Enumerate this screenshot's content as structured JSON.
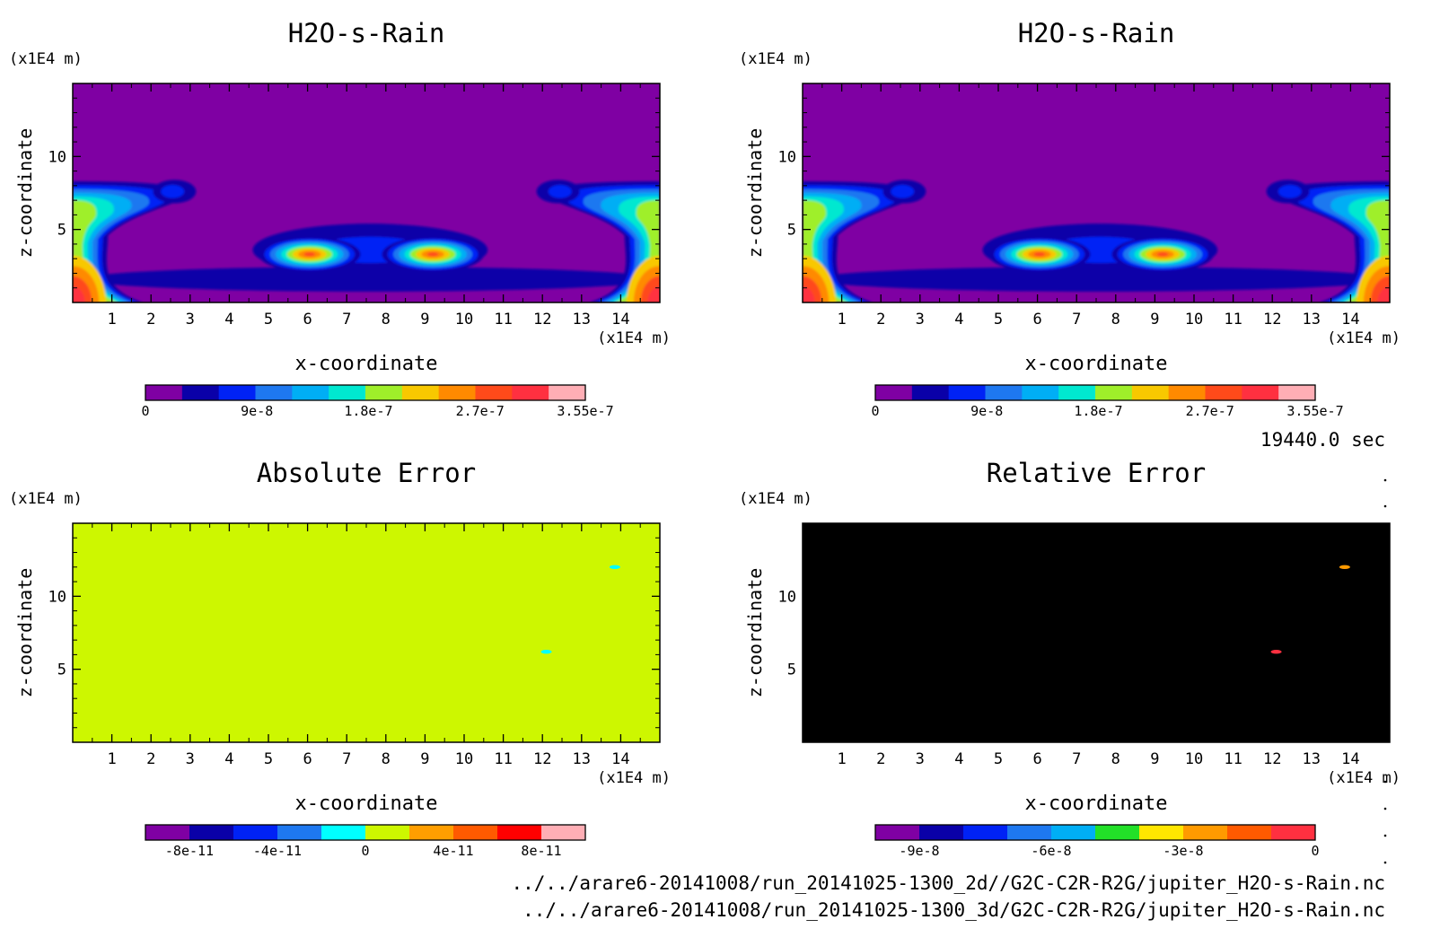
{
  "palettes": {
    "rain": [
      "#7f00a3",
      "#0a00a8",
      "#0022f5",
      "#1e78f0",
      "#00aef5",
      "#00e8d0",
      "#9fef2a",
      "#f8c800",
      "#ff8a00",
      "#ff4a1a",
      "#ff3040",
      "#ffaeb5"
    ],
    "abs_error": [
      "#7f00a3",
      "#0a00a8",
      "#0022f5",
      "#1e78f0",
      "#00ffff",
      "#cdf700",
      "#ff9e00",
      "#ff5a00",
      "#ff0000",
      "#ffaeb5"
    ],
    "rel_error": [
      "#7f00a3",
      "#0a00a8",
      "#0022f5",
      "#1e78f0",
      "#00aef5",
      "#22e028",
      "#ffe600",
      "#ff9a00",
      "#ff5a00",
      "#ff3040"
    ]
  },
  "footer": {
    "time": "19440.0 sec",
    "file1": "../../arare6-20141008/run_20141025-1300_2d//G2C-C2R-R2G/jupiter_H2O-s-Rain.nc",
    "file2": "../../arare6-20141008/run_20141025-1300_3d/G2C-C2R-R2G/jupiter_H2O-s-Rain.nc"
  },
  "chart_data": [
    {
      "type": "heatmap",
      "title": "H2O-s-Rain",
      "xlabel": "x-coordinate",
      "ylabel": "z-coordinate",
      "x_unit": "(x1E4 m)",
      "y_unit": "(x1E4 m)",
      "xlim": [
        0,
        15
      ],
      "ylim": [
        0,
        15
      ],
      "x_ticks": [
        "1",
        "2",
        "3",
        "4",
        "5",
        "6",
        "7",
        "8",
        "9",
        "10",
        "11",
        "12",
        "13",
        "14"
      ],
      "y_ticks": [
        "5",
        "10"
      ],
      "field": "rain",
      "palette": "rain",
      "background_level": 0,
      "colorbar_labels": [
        "0",
        "9e-8",
        "1.8e-7",
        "2.7e-7",
        "3.55e-7"
      ],
      "range": [
        0,
        3.55e-07
      ]
    },
    {
      "type": "heatmap",
      "title": "H2O-s-Rain",
      "xlabel": "x-coordinate",
      "ylabel": "z-coordinate",
      "x_unit": "(x1E4 m)",
      "y_unit": "(x1E4 m)",
      "xlim": [
        0,
        15
      ],
      "ylim": [
        0,
        15
      ],
      "x_ticks": [
        "1",
        "2",
        "3",
        "4",
        "5",
        "6",
        "7",
        "8",
        "9",
        "10",
        "11",
        "12",
        "13",
        "14"
      ],
      "y_ticks": [
        "5",
        "10"
      ],
      "field": "rain",
      "palette": "rain",
      "background_level": 0,
      "colorbar_labels": [
        "0",
        "9e-8",
        "1.8e-7",
        "2.7e-7",
        "3.55e-7"
      ],
      "range": [
        0,
        3.55e-07
      ]
    },
    {
      "type": "heatmap",
      "title": "Absolute Error",
      "xlabel": "x-coordinate",
      "ylabel": "z-coordinate",
      "x_unit": "(x1E4 m)",
      "y_unit": "(x1E4 m)",
      "xlim": [
        0,
        15
      ],
      "ylim": [
        0,
        15
      ],
      "x_ticks": [
        "1",
        "2",
        "3",
        "4",
        "5",
        "6",
        "7",
        "8",
        "9",
        "10",
        "11",
        "12",
        "13",
        "14"
      ],
      "y_ticks": [
        "5",
        "10"
      ],
      "field": "uniform",
      "palette": "abs_error",
      "background_level": 5,
      "spots": [
        {
          "x": 13.85,
          "z": 12.0,
          "level": 4
        },
        {
          "x": 12.1,
          "z": 6.2,
          "level": 4
        }
      ],
      "colorbar_labels": [
        "-8e-11",
        "-4e-11",
        "0",
        "4e-11",
        "8e-11"
      ],
      "range": [
        -1e-10,
        1e-10
      ]
    },
    {
      "type": "heatmap",
      "title": "Relative Error",
      "xlabel": "x-coordinate",
      "ylabel": "z-coordinate",
      "x_unit": "(x1E4 m)",
      "y_unit": "(x1E4 m)",
      "xlim": [
        0,
        15
      ],
      "ylim": [
        0,
        15
      ],
      "x_ticks": [
        "1",
        "2",
        "3",
        "4",
        "5",
        "6",
        "7",
        "8",
        "9",
        "10",
        "11",
        "12",
        "13",
        "14"
      ],
      "y_ticks": [
        "5",
        "10"
      ],
      "field": "uniform",
      "palette": "rel_error",
      "background_level": 10,
      "spots": [
        {
          "x": 13.85,
          "z": 12.0,
          "level": 7
        },
        {
          "x": 12.1,
          "z": 6.2,
          "level": 9
        }
      ],
      "colorbar_labels": [
        "-9e-8",
        "-6e-8",
        "-3e-8",
        "0"
      ],
      "range": [
        -1e-07,
        0
      ]
    }
  ]
}
